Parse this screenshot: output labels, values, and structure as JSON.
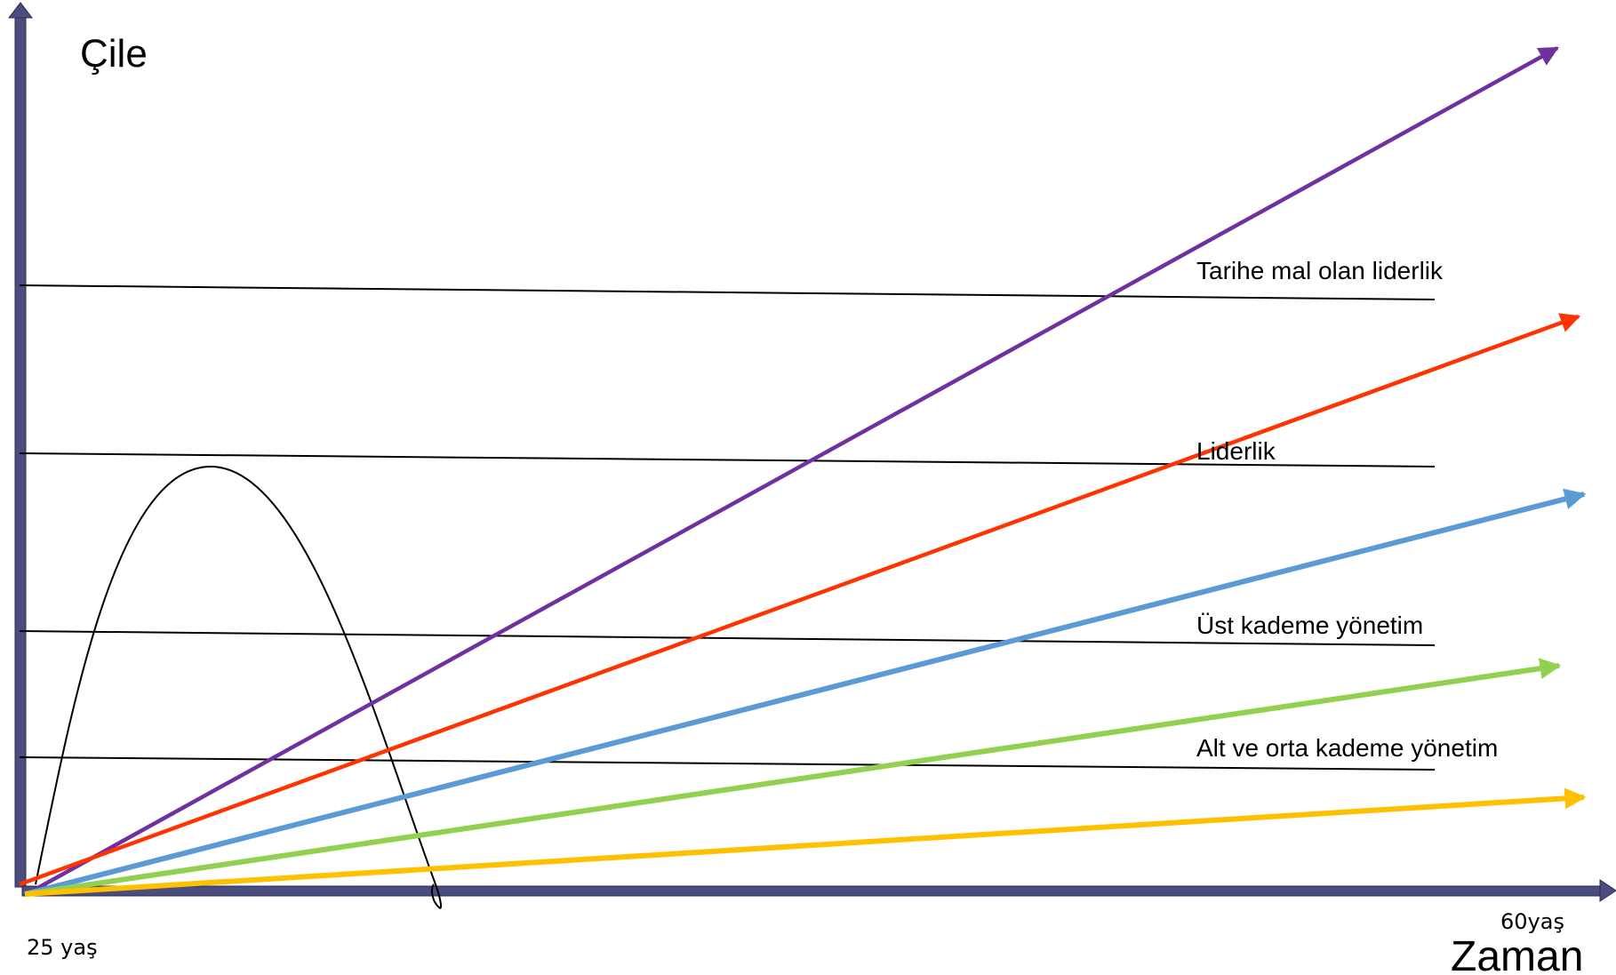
{
  "axes": {
    "y_label": "Çile",
    "x_label": "Zaman",
    "x_start_label": "25 yaş",
    "x_end_label": "60yaş",
    "axis_color": "#4a4d7e"
  },
  "levels": [
    {
      "label": "Alt ve orta kademe yönetim"
    },
    {
      "label": "Üst kademe yönetim"
    },
    {
      "label": "Liderlik"
    },
    {
      "label": "Tarihe mal olan liderlik"
    }
  ],
  "arrows": [
    {
      "color": "#7030a0",
      "name": "purple"
    },
    {
      "color": "#ff3300",
      "name": "red"
    },
    {
      "color": "#5b9bd5",
      "name": "blue"
    },
    {
      "color": "#92d050",
      "name": "green"
    },
    {
      "color": "#ffc000",
      "name": "yellow"
    }
  ],
  "curve": {
    "color": "#000000"
  }
}
